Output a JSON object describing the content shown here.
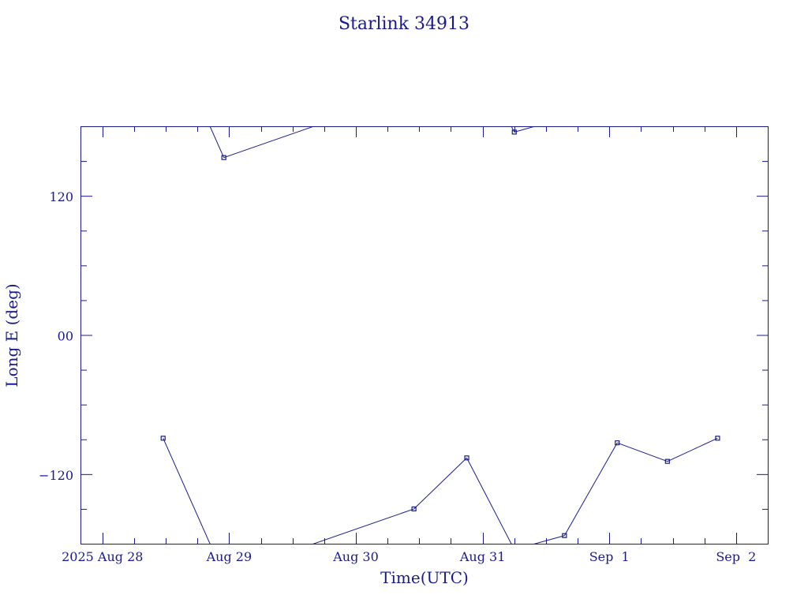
{
  "colors": {
    "ink": "#1a1a8c",
    "background": "#ffffff"
  },
  "chart_data": {
    "type": "line",
    "title": "Starlink 34913",
    "xlabel": "Time(UTC)",
    "ylabel": "Long E (deg)",
    "x_unit": "date (UTC)",
    "xlim": [
      "2025-08-27T20:00:00Z",
      "2025-09-02T06:00:00Z"
    ],
    "ylim": [
      -180,
      180
    ],
    "x_ticks": [
      {
        "value": "2025-08-28T00:00:00Z",
        "label": "2025 Aug 28"
      },
      {
        "value": "2025-08-29T00:00:00Z",
        "label": "Aug 29"
      },
      {
        "value": "2025-08-30T00:00:00Z",
        "label": "Aug 30"
      },
      {
        "value": "2025-08-31T00:00:00Z",
        "label": "Aug 31"
      },
      {
        "value": "2025-09-01T00:00:00Z",
        "label": "Sep  1"
      },
      {
        "value": "2025-09-02T00:00:00Z",
        "label": "Sep  2"
      }
    ],
    "y_ticks": [
      {
        "value": 120,
        "label": "120"
      },
      {
        "value": 0,
        "label": "00"
      },
      {
        "value": -120,
        "label": "−120"
      }
    ],
    "y_minor_step": 30,
    "x_minor_step_hours": 6,
    "grid": false,
    "series": [
      {
        "points": [
          {
            "x": "2025-08-28T11:30:00Z",
            "y": -89
          },
          {
            "x": "2025-08-28T23:00:00Z",
            "y": 153
          },
          {
            "x": "2025-08-30T11:00:00Z",
            "y": -150
          },
          {
            "x": "2025-08-30T21:00:00Z",
            "y": -106
          },
          {
            "x": "2025-08-31T06:00:00Z",
            "y": 175
          },
          {
            "x": "2025-08-31T15:30:00Z",
            "y": -173
          },
          {
            "x": "2025-09-01T01:30:00Z",
            "y": -93
          },
          {
            "x": "2025-09-01T11:00:00Z",
            "y": -109
          },
          {
            "x": "2025-09-01T20:30:00Z",
            "y": -89
          }
        ]
      }
    ]
  }
}
